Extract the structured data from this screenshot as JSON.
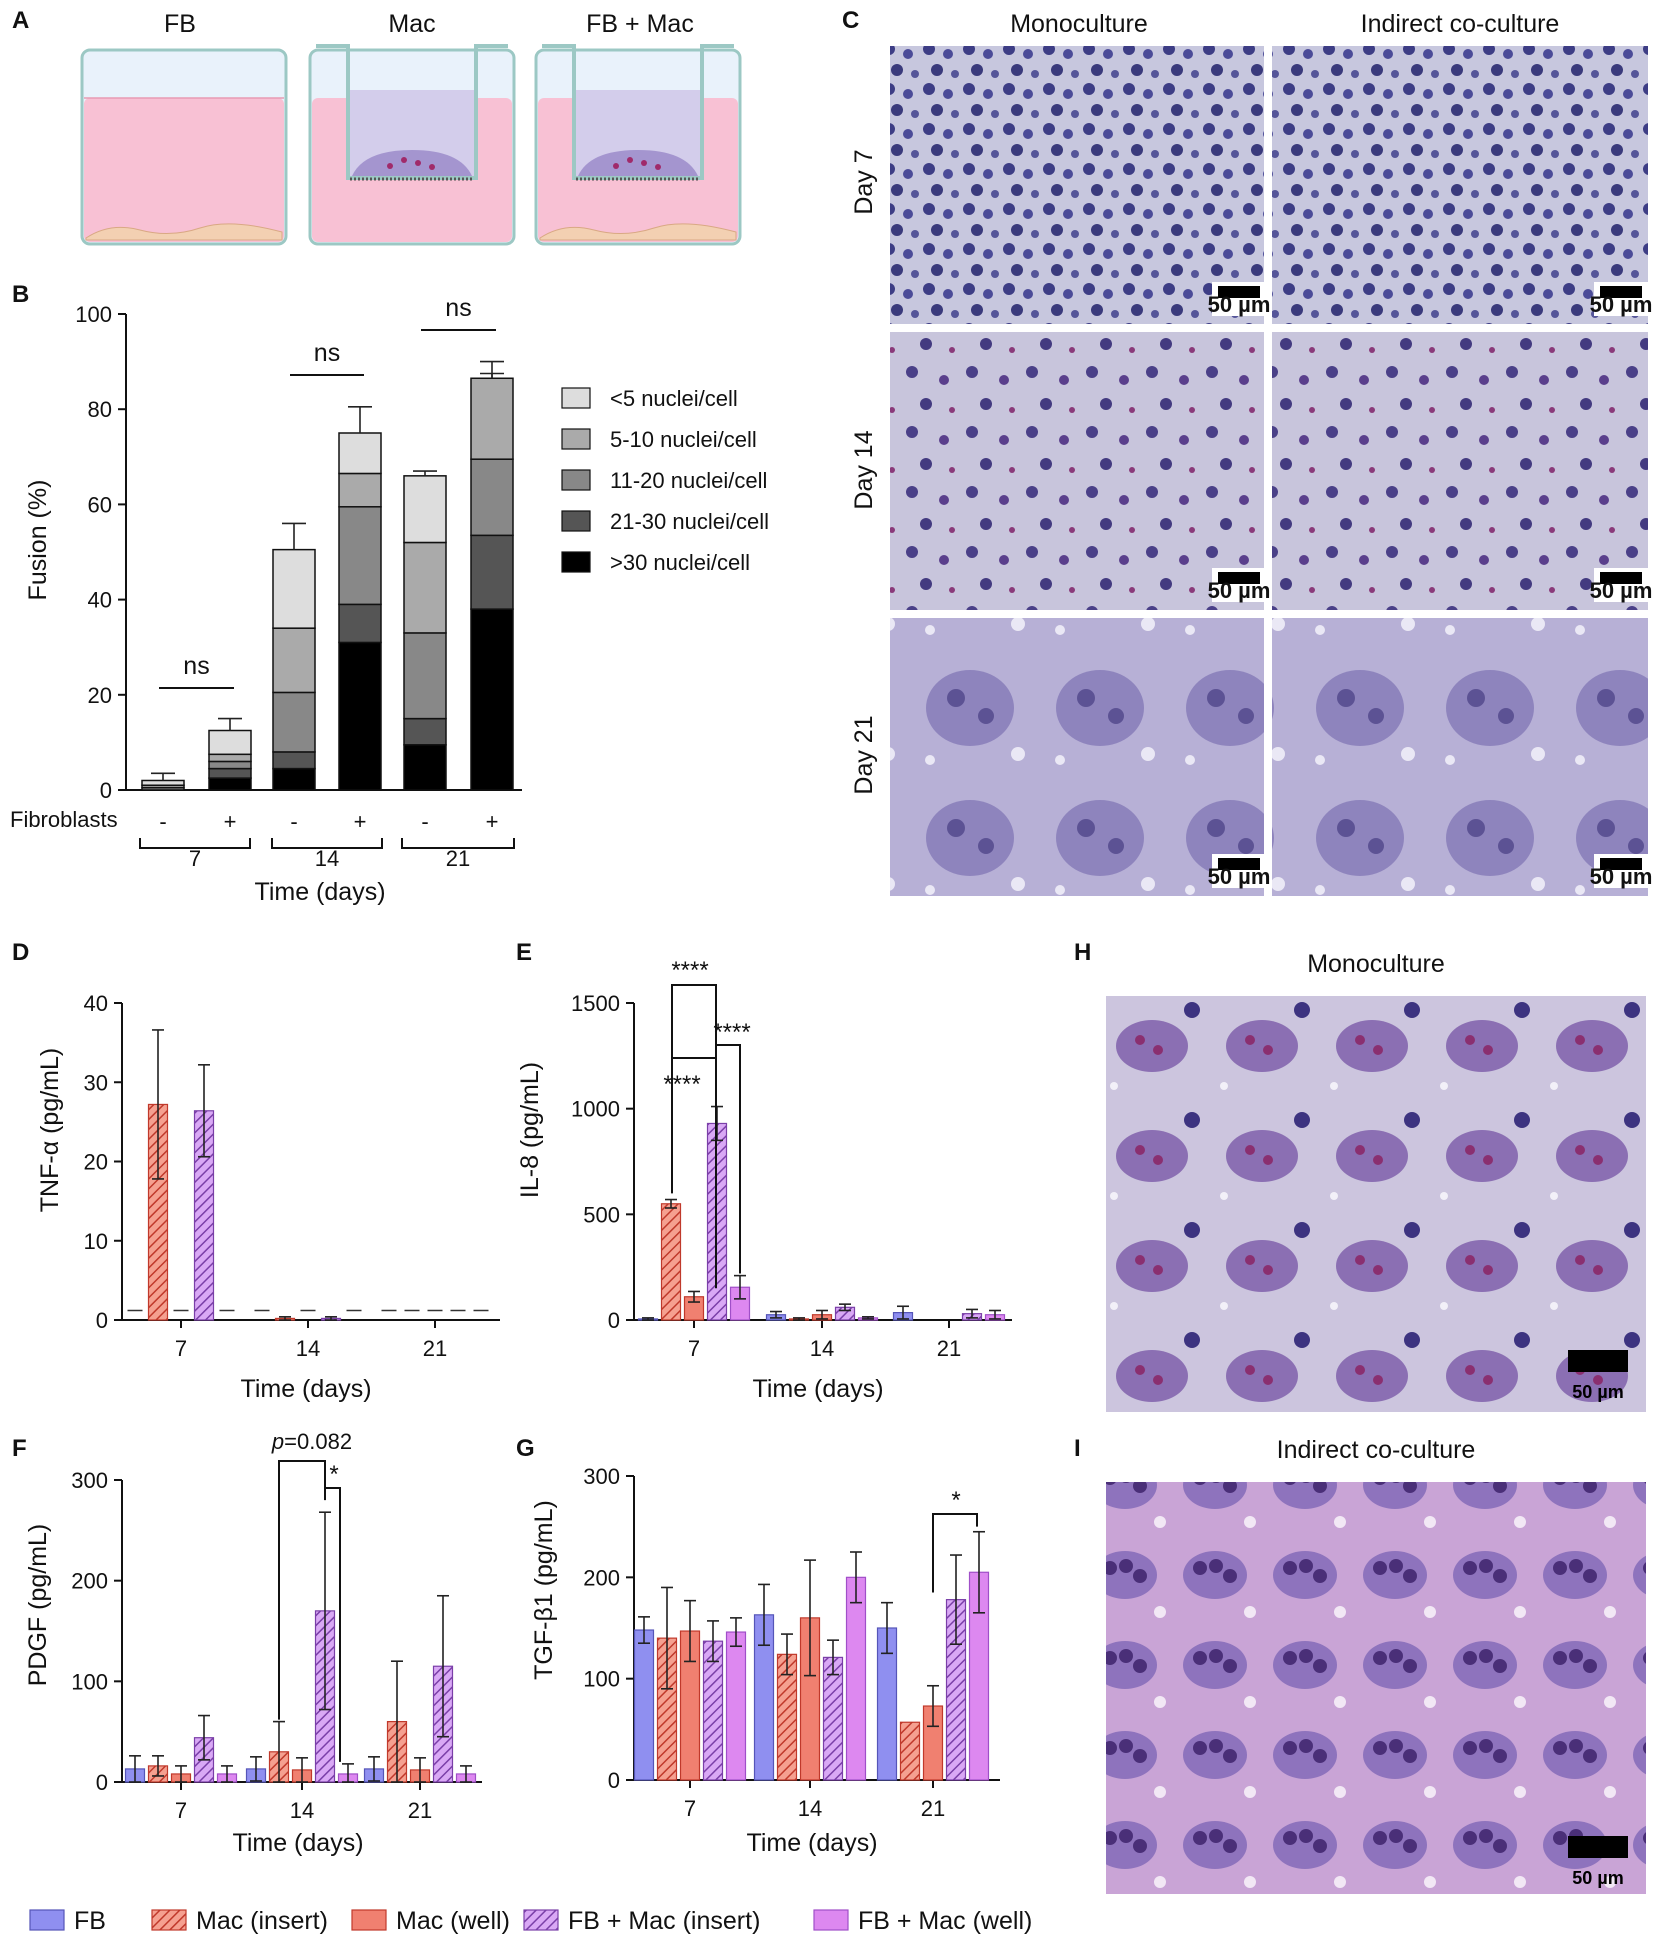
{
  "panels": {
    "A": "A",
    "B": "B",
    "C": "C",
    "D": "D",
    "E": "E",
    "F": "F",
    "G": "G",
    "H": "H",
    "I": "I"
  },
  "colors": {
    "FB": "#8f8ff0",
    "Mac (insert)": "#f08070",
    "Mac (well)": "#f08070",
    "FB + Mac (insert)": "#cc88f0",
    "FB + Mac (well)": "#dd88f0"
  },
  "schematic": {
    "labels": [
      "FB",
      "Mac",
      "FB + Mac"
    ]
  },
  "micrographs": {
    "col_labels": [
      "Monoculture",
      "Indirect co-culture"
    ],
    "row_labels": [
      "Day 7",
      "Day 14",
      "Day 21"
    ],
    "scale": "50 µm"
  },
  "panel_h": {
    "title": "Monoculture",
    "scale": "50 µm"
  },
  "panel_i": {
    "title": "Indirect co-culture",
    "scale": "50 µm"
  },
  "legend": [
    "FB",
    "Mac (insert)",
    "Mac (well)",
    "FB + Mac (insert)",
    "FB + Mac (well)"
  ],
  "chart_data": [
    {
      "panel": "B",
      "type": "bar",
      "stacked": true,
      "ylabel": "Fusion (%)",
      "xlabel": "Time (days)",
      "ylim": [
        0,
        100
      ],
      "yticks": [
        0,
        20,
        40,
        60,
        80,
        100
      ],
      "row_label": "Fibroblasts",
      "fibroblast_marks": [
        "-",
        "+",
        "-",
        "+",
        "-",
        "+"
      ],
      "groups": [
        "7",
        "14",
        "21"
      ],
      "series": [
        {
          "name": ">30 nuclei/cell",
          "color": "#000000",
          "values": [
            0,
            2.5,
            4.5,
            31,
            9.5,
            38
          ]
        },
        {
          "name": "21-30 nuclei/cell",
          "color": "#555555",
          "values": [
            0,
            2,
            3.5,
            8,
            5.5,
            15.5
          ]
        },
        {
          "name": "11-20 nuclei/cell",
          "color": "#888888",
          "values": [
            0.5,
            1.5,
            12.5,
            20.5,
            18,
            16
          ]
        },
        {
          "name": "5-10 nuclei/cell",
          "color": "#aaaaaa",
          "values": [
            0.5,
            1.5,
            13.5,
            7,
            19,
            17
          ]
        },
        {
          "name": "<5 nuclei/cell",
          "color": "#dddddd",
          "values": [
            1,
            5,
            16.5,
            8.5,
            14,
            0
          ]
        }
      ],
      "stack_errors": [
        [
          1.5,
          0.5,
          0.5,
          0.5,
          1.5
        ],
        [
          1,
          1,
          1,
          1,
          2.5
        ],
        [
          3.5,
          3.5,
          5,
          3,
          5.5
        ],
        [
          8,
          6.5,
          7.5,
          5,
          5.5
        ],
        [
          1.5,
          6,
          4.5,
          4,
          1
        ],
        [
          9,
          7.5,
          8,
          1,
          3.5
        ]
      ],
      "significance": [
        {
          "groups": "7",
          "label": "ns"
        },
        {
          "groups": "14",
          "label": "ns"
        },
        {
          "groups": "21",
          "label": "ns"
        }
      ]
    },
    {
      "panel": "D",
      "type": "bar",
      "ylabel": "TNF-α (pg/mL)",
      "xlabel": "Time (days)",
      "ylim": [
        0,
        40
      ],
      "yticks": [
        0,
        10,
        20,
        30,
        40
      ],
      "categories": [
        "7",
        "14",
        "21"
      ],
      "series": [
        {
          "name": "FB",
          "values": [
            null,
            null,
            null
          ],
          "errors": [
            0,
            0,
            0
          ]
        },
        {
          "name": "Mac (insert)",
          "values": [
            27.2,
            0.2,
            null
          ],
          "errors": [
            9.4,
            0.2,
            0
          ]
        },
        {
          "name": "Mac (well)",
          "values": [
            null,
            null,
            null
          ],
          "errors": [
            0,
            0,
            0
          ]
        },
        {
          "name": "FB + Mac (insert)",
          "values": [
            26.4,
            0.2,
            null
          ],
          "errors": [
            5.8,
            0.2,
            0
          ]
        },
        {
          "name": "FB + Mac (well)",
          "values": [
            null,
            null,
            null
          ],
          "errors": [
            0,
            0,
            0
          ]
        }
      ],
      "detection_limit": 1.2
    },
    {
      "panel": "E",
      "type": "bar",
      "ylabel": "IL-8 (pg/mL)",
      "xlabel": "Time (days)",
      "ylim": [
        0,
        1500
      ],
      "yticks": [
        0,
        500,
        1000,
        1500
      ],
      "categories": [
        "7",
        "14",
        "21"
      ],
      "series": [
        {
          "name": "FB",
          "values": [
            5,
            25,
            35
          ],
          "errors": [
            5,
            15,
            30
          ]
        },
        {
          "name": "Mac (insert)",
          "values": [
            550,
            5,
            null
          ],
          "errors": [
            20,
            5,
            0
          ]
        },
        {
          "name": "Mac (well)",
          "values": [
            110,
            25,
            null
          ],
          "errors": [
            25,
            20,
            0
          ]
        },
        {
          "name": "FB + Mac (insert)",
          "values": [
            930,
            60,
            30
          ],
          "errors": [
            80,
            15,
            20
          ]
        },
        {
          "name": "FB + Mac (well)",
          "values": [
            155,
            10,
            25
          ],
          "errors": [
            55,
            5,
            20
          ]
        }
      ],
      "significance": [
        "****",
        "****",
        "****"
      ]
    },
    {
      "panel": "F",
      "type": "bar",
      "ylabel": "PDGF (pg/mL)",
      "xlabel": "Time (days)",
      "ylim": [
        0,
        300
      ],
      "yticks": [
        0,
        100,
        200,
        300
      ],
      "categories": [
        "7",
        "14",
        "21"
      ],
      "series": [
        {
          "name": "FB",
          "values": [
            13,
            13,
            13
          ],
          "errors": [
            13,
            12,
            12
          ]
        },
        {
          "name": "Mac (insert)",
          "values": [
            16,
            30,
            60
          ],
          "errors": [
            10,
            30,
            60
          ]
        },
        {
          "name": "Mac (well)",
          "values": [
            8,
            12,
            12
          ],
          "errors": [
            8,
            12,
            12
          ]
        },
        {
          "name": "FB + Mac (insert)",
          "values": [
            44,
            170,
            115
          ],
          "errors": [
            22,
            98,
            70
          ]
        },
        {
          "name": "FB + Mac (well)",
          "values": [
            8,
            8,
            8
          ],
          "errors": [
            8,
            10,
            8
          ]
        }
      ],
      "annotation_p": "p",
      "annotation_value": "=0.082",
      "significance": [
        "*"
      ]
    },
    {
      "panel": "G",
      "type": "bar",
      "ylabel": "TGF-β1 (pg/mL)",
      "xlabel": "Time (days)",
      "ylim": [
        0,
        300
      ],
      "yticks": [
        0,
        100,
        200,
        300
      ],
      "categories": [
        "7",
        "14",
        "21"
      ],
      "series": [
        {
          "name": "FB",
          "values": [
            148,
            163,
            150
          ],
          "errors": [
            13,
            30,
            25
          ]
        },
        {
          "name": "Mac (insert)",
          "values": [
            140,
            124,
            57
          ],
          "errors": [
            50,
            20,
            0
          ]
        },
        {
          "name": "Mac (well)",
          "values": [
            147,
            160,
            73
          ],
          "errors": [
            30,
            57,
            20
          ]
        },
        {
          "name": "FB + Mac (insert)",
          "values": [
            137,
            121,
            178
          ],
          "errors": [
            20,
            17,
            44
          ]
        },
        {
          "name": "FB + Mac (well)",
          "values": [
            146,
            200,
            205
          ],
          "errors": [
            14,
            25,
            40
          ]
        }
      ],
      "significance": [
        "*"
      ]
    }
  ]
}
